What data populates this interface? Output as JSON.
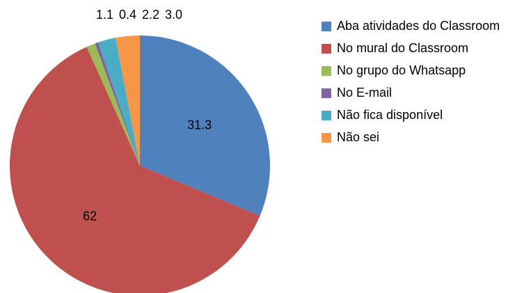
{
  "chart_data": {
    "type": "pie",
    "categories": [
      "Aba atividades do Classroom",
      "No mural do Classroom",
      "No grupo do Whatsapp",
      "No E-mail",
      "Não fica disponível",
      "Não sei"
    ],
    "values": [
      31.3,
      62,
      1.1,
      0.4,
      2.2,
      3.0
    ],
    "value_labels": [
      "31.3",
      "62",
      "1.1",
      "0.4",
      "2.2",
      "3.0"
    ],
    "colors": [
      "#4f81bd",
      "#c0504d",
      "#9bbb59",
      "#8064a2",
      "#4bacc6",
      "#f79646"
    ],
    "legend": "right"
  }
}
